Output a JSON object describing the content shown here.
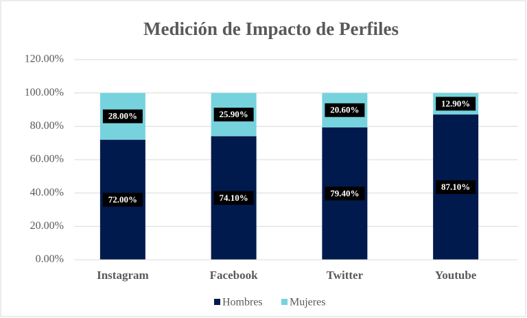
{
  "chart_data": {
    "type": "stacked_bar",
    "title": "Medición de Impacto de Perfiles",
    "categories": [
      "Instagram",
      "Facebook",
      "Twitter",
      "Youtube"
    ],
    "series": [
      {
        "name": "Hombres",
        "color": "#001a4d",
        "values": [
          72,
          74.1,
          79.4,
          87.1
        ],
        "value_labels": [
          "72.00%",
          "74.10%",
          "79.40%",
          "87.10%"
        ]
      },
      {
        "name": "Mujeres",
        "color": "#76d3de",
        "values": [
          28,
          25.9,
          20.6,
          12.9
        ],
        "value_labels": [
          "28.00%",
          "25.90%",
          "20.60%",
          "12.90%"
        ]
      }
    ],
    "ylim": [
      0,
      120
    ],
    "yticks": [
      {
        "value": 0,
        "label": "0.00%"
      },
      {
        "value": 20,
        "label": "20.00%"
      },
      {
        "value": 40,
        "label": "40.00%"
      },
      {
        "value": 60,
        "label": "60.00%"
      },
      {
        "value": 80,
        "label": "80.00%"
      },
      {
        "value": 100,
        "label": "100.00%"
      },
      {
        "value": 120,
        "label": "120.00%"
      }
    ],
    "grid": true,
    "legend": "bottom"
  }
}
